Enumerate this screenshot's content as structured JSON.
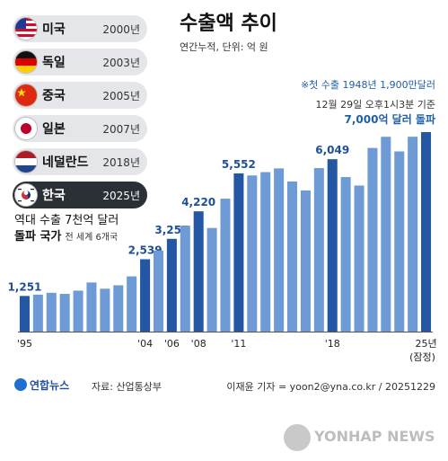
{
  "title": "수출액 추이",
  "subtitle": "연간누적, 단위: 억 원",
  "note_first_export": "※첫 수출 1948년 1,900만달러",
  "note_basis": "12월 29일 오후1시3분 기준",
  "note_milestone": "7,000억 달러 돌파",
  "mid_line1": "역대 수출 7천억 달러",
  "mid_line2": "돌파 국가",
  "mid_line2_small": "전 세계 6개국",
  "countries": [
    {
      "name": "미국",
      "year": "2000년",
      "flag": "us-flag-icon"
    },
    {
      "name": "독일",
      "year": "2003년",
      "flag": "germany-flag-icon"
    },
    {
      "name": "중국",
      "year": "2005년",
      "flag": "china-flag-icon"
    },
    {
      "name": "일본",
      "year": "2007년",
      "flag": "japan-flag-icon"
    },
    {
      "name": "네덜란드",
      "year": "2018년",
      "flag": "netherlands-flag-icon"
    },
    {
      "name": "한국",
      "year": "2025년",
      "flag": "korea-flag-icon"
    }
  ],
  "footer": {
    "logo": "연합뉴스",
    "source": "자료: 산업통상부",
    "credit": "이재윤 기자 = yoon2@yna.co.kr / 20251229",
    "watermark": "YONHAP NEWS"
  },
  "chart_data": {
    "type": "bar",
    "x": [
      1995,
      1996,
      1997,
      1998,
      1999,
      2000,
      2001,
      2002,
      2003,
      2004,
      2005,
      2006,
      2007,
      2008,
      2009,
      2010,
      2011,
      2012,
      2013,
      2014,
      2015,
      2016,
      2017,
      2018,
      2019,
      2020,
      2021,
      2022,
      2023,
      2024,
      2025
    ],
    "values": [
      1251,
      1297,
      1362,
      1323,
      1437,
      1723,
      1504,
      1625,
      1938,
      2539,
      2844,
      3255,
      3715,
      4220,
      3635,
      4664,
      5552,
      5479,
      5596,
      5727,
      5268,
      4954,
      5737,
      6049,
      5422,
      5125,
      6444,
      6836,
      6322,
      6838,
      7000
    ],
    "labels": {
      "0": "1,251",
      "9": "2,539",
      "11": "3,255",
      "13": "4,220",
      "16": "5,552",
      "23": "6,049"
    },
    "highlight_indices": [
      0,
      9,
      11,
      13,
      16,
      23,
      30
    ],
    "x_ticks": [
      {
        "index": 0,
        "label": "'95"
      },
      {
        "index": 9,
        "label": "'04"
      },
      {
        "index": 11,
        "label": "'06"
      },
      {
        "index": 13,
        "label": "'08"
      },
      {
        "index": 16,
        "label": "'11"
      },
      {
        "index": 23,
        "label": "'18"
      },
      {
        "index": 30,
        "label": "25년"
      }
    ],
    "x_tick_sub": "(잠정)",
    "ylim": [
      0,
      7000
    ],
    "colors": {
      "dark": "#2457a3",
      "light": "#6e9ad6"
    }
  }
}
